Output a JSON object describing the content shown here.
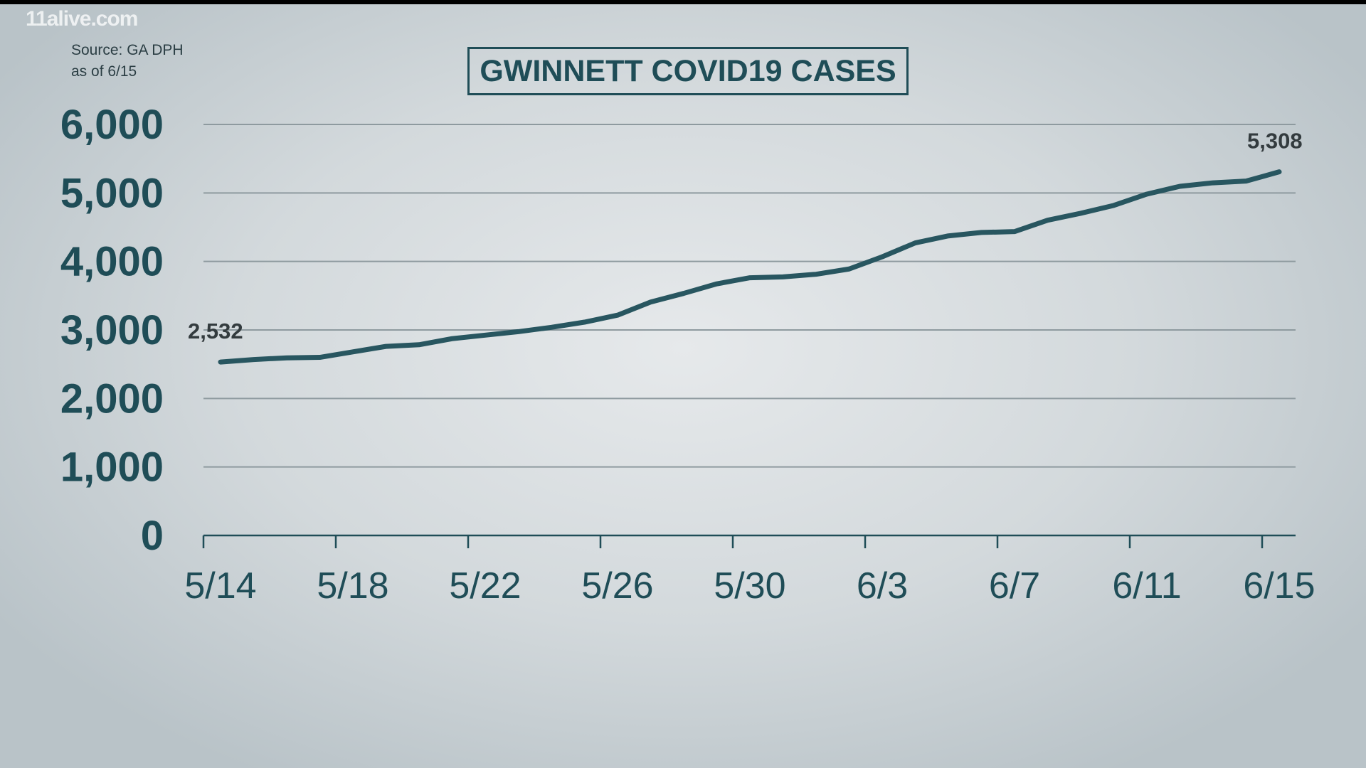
{
  "watermark": "11alive.com",
  "source": {
    "line1": "Source: GA DPH",
    "line2": "as of 6/15"
  },
  "colors": {
    "line": "#285660",
    "text": "#1f4d57",
    "grid": "#8e9a9f"
  },
  "chart_data": {
    "type": "line",
    "title": "GWINNETT COVID19 CASES",
    "xlabel": "",
    "ylabel": "",
    "ylim": [
      0,
      6000
    ],
    "grid": true,
    "y_ticks": [
      "0",
      "1,000",
      "2,000",
      "3,000",
      "4,000",
      "5,000",
      "6,000"
    ],
    "x_ticks": [
      "5/14",
      "5/18",
      "5/22",
      "5/26",
      "5/30",
      "6/3",
      "6/7",
      "6/11",
      "6/15"
    ],
    "x": [
      "5/14",
      "5/15",
      "5/16",
      "5/17",
      "5/18",
      "5/19",
      "5/20",
      "5/21",
      "5/22",
      "5/23",
      "5/24",
      "5/25",
      "5/26",
      "5/27",
      "5/28",
      "5/29",
      "5/30",
      "5/31",
      "6/1",
      "6/2",
      "6/3",
      "6/4",
      "6/5",
      "6/6",
      "6/7",
      "6/8",
      "6/9",
      "6/10",
      "6/11",
      "6/12",
      "6/13",
      "6/14",
      "6/15"
    ],
    "values": [
      2532,
      2568,
      2593,
      2600,
      2680,
      2760,
      2784,
      2873,
      2924,
      2975,
      3038,
      3114,
      3216,
      3407,
      3534,
      3673,
      3762,
      3775,
      3813,
      3890,
      4068,
      4271,
      4373,
      4423,
      4436,
      4602,
      4703,
      4818,
      4983,
      5097,
      5148,
      5173,
      5308
    ],
    "data_labels": [
      {
        "x": "5/14",
        "text": "2,532"
      },
      {
        "x": "6/15",
        "text": "5,308"
      }
    ]
  }
}
